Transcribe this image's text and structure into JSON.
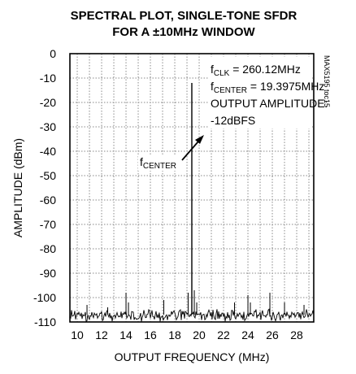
{
  "chart_data": {
    "type": "line",
    "title_lines": [
      "SPECTRAL PLOT, SINGLE-TONE SFDR",
      "FOR A ±10MHz WINDOW"
    ],
    "xlabel": "OUTPUT FREQUENCY (MHz)",
    "ylabel": "AMPLITUDE (dBm)",
    "xlim": [
      9.3975,
      29.3975
    ],
    "ylim": [
      -110,
      0
    ],
    "x_ticks": [
      "10",
      "12",
      "14",
      "16",
      "18",
      "20",
      "22",
      "24",
      "26",
      "28"
    ],
    "x_tick_values": [
      10,
      12,
      14,
      16,
      18,
      20,
      22,
      24,
      26,
      28
    ],
    "y_ticks": [
      "0",
      "-10",
      "-20",
      "-30",
      "-40",
      "-50",
      "-60",
      "-70",
      "-80",
      "-90",
      "-100",
      "-110"
    ],
    "y_tick_values": [
      0,
      -10,
      -20,
      -30,
      -40,
      -50,
      -60,
      -70,
      -80,
      -90,
      -100,
      -110
    ],
    "grid": true,
    "noise_floor": -107,
    "series": [
      {
        "peaks": [
          {
            "x": 19.3975,
            "y": -12
          },
          {
            "x": 19.1,
            "y": -98
          },
          {
            "x": 19.6,
            "y": -97
          },
          {
            "x": 19.8,
            "y": -102
          },
          {
            "x": 14.0,
            "y": -98
          },
          {
            "x": 14.2,
            "y": -102
          },
          {
            "x": 17.1,
            "y": -101
          },
          {
            "x": 10.8,
            "y": -103
          },
          {
            "x": 24.0,
            "y": -99
          },
          {
            "x": 24.2,
            "y": -102
          },
          {
            "x": 25.8,
            "y": -98
          },
          {
            "x": 27.0,
            "y": -102
          },
          {
            "x": 22.9,
            "y": -102
          },
          {
            "x": 12.5,
            "y": -104
          },
          {
            "x": 28.6,
            "y": -103
          }
        ]
      }
    ],
    "annotations": {
      "fclk": {
        "main": "f",
        "sub": "CLK",
        "rest": " = 260.12MHz"
      },
      "fcenter_value": {
        "main": "f",
        "sub": "CENTER",
        "rest": " = 19.3975MHz"
      },
      "amp_label": "OUTPUT AMPLITUDE:",
      "amp_value": "-12dBFS",
      "arrow_label": {
        "main": "f",
        "sub": "CENTER"
      }
    },
    "figure_id": "MAX5195 toc15"
  }
}
